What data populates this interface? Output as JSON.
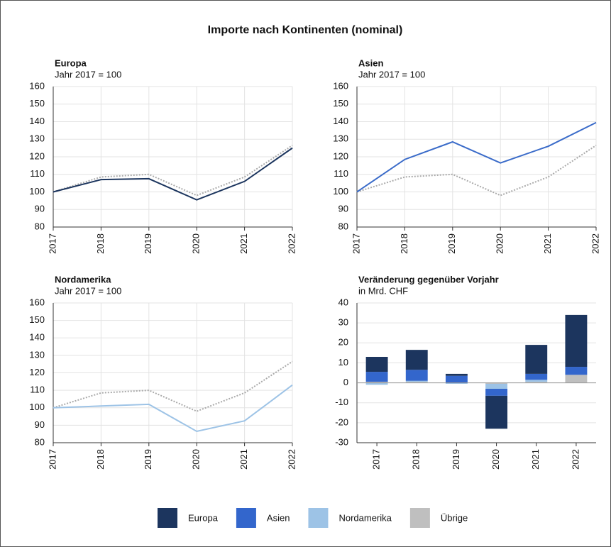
{
  "title": "Importe nach Kontinenten (nominal)",
  "chart_data": [
    {
      "type": "line",
      "title": "Europa",
      "subtitle": "Jahr 2017 = 100",
      "x": [
        2017,
        2018,
        2019,
        2020,
        2021,
        2022
      ],
      "xlim": [
        2017,
        2022
      ],
      "xticks": [
        2017,
        2018,
        2019,
        2020,
        2021,
        2022
      ],
      "ylim": [
        80,
        160
      ],
      "yticks": [
        80,
        90,
        100,
        110,
        120,
        130,
        140,
        150,
        160
      ],
      "grid": true,
      "series": [
        {
          "color": "#aaaaaa",
          "style": "dotted",
          "values": [
            100,
            108.5,
            110,
            98,
            108.5,
            126.5
          ]
        },
        {
          "color": "#1c355e",
          "style": "solid",
          "values": [
            100,
            107,
            107.5,
            95.5,
            106,
            125
          ]
        }
      ]
    },
    {
      "type": "line",
      "title": "Asien",
      "subtitle": "Jahr 2017 = 100",
      "x": [
        2017,
        2018,
        2019,
        2020,
        2021,
        2022
      ],
      "xlim": [
        2017,
        2022
      ],
      "xticks": [
        2017,
        2018,
        2019,
        2020,
        2021,
        2022
      ],
      "ylim": [
        80,
        160
      ],
      "yticks": [
        80,
        90,
        100,
        110,
        120,
        130,
        140,
        150,
        160
      ],
      "grid": true,
      "series": [
        {
          "color": "#aaaaaa",
          "style": "dotted",
          "values": [
            100,
            108.5,
            110,
            98,
            108.5,
            126.5
          ]
        },
        {
          "color": "#3a6bc9",
          "style": "solid",
          "values": [
            100,
            118.5,
            128.5,
            116.5,
            126,
            139.5
          ]
        }
      ]
    },
    {
      "type": "line",
      "title": "Nordamerika",
      "subtitle": "Jahr 2017 = 100",
      "x": [
        2017,
        2018,
        2019,
        2020,
        2021,
        2022
      ],
      "xlim": [
        2017,
        2022
      ],
      "xticks": [
        2017,
        2018,
        2019,
        2020,
        2021,
        2022
      ],
      "ylim": [
        80,
        160
      ],
      "yticks": [
        80,
        90,
        100,
        110,
        120,
        130,
        140,
        150,
        160
      ],
      "grid": true,
      "series": [
        {
          "color": "#aaaaaa",
          "style": "dotted",
          "values": [
            100,
            108.5,
            110,
            98,
            108.5,
            126.5
          ]
        },
        {
          "color": "#9dc3e6",
          "style": "solid",
          "values": [
            100,
            101,
            102,
            86.5,
            92.5,
            113
          ]
        }
      ]
    },
    {
      "type": "stacked_bar",
      "title": "Veränderung gegenüber Vorjahr",
      "subtitle": "in Mrd. CHF",
      "categories": [
        "2017",
        "2018",
        "2019",
        "2020",
        "2021",
        "2022"
      ],
      "ylim": [
        -30,
        40
      ],
      "yticks": [
        -30,
        -20,
        -10,
        0,
        10,
        20,
        30,
        40
      ],
      "grid": true,
      "series": [
        {
          "name": "Europa",
          "color": "#1c355e",
          "values": [
            7.5,
            10,
            1,
            -16.5,
            14.5,
            26
          ]
        },
        {
          "name": "Asien",
          "color": "#3366cc",
          "values": [
            5,
            5.5,
            3.5,
            -3.5,
            3,
            4
          ]
        },
        {
          "name": "Nordamerika",
          "color": "#9dc3e6",
          "values": [
            -1,
            0.5,
            -0.5,
            -2.5,
            1,
            0
          ]
        },
        {
          "name": "Übrige",
          "color": "#bfbfbf",
          "values": [
            0.5,
            0.5,
            0,
            -0.5,
            0.5,
            4
          ]
        }
      ]
    }
  ]
}
